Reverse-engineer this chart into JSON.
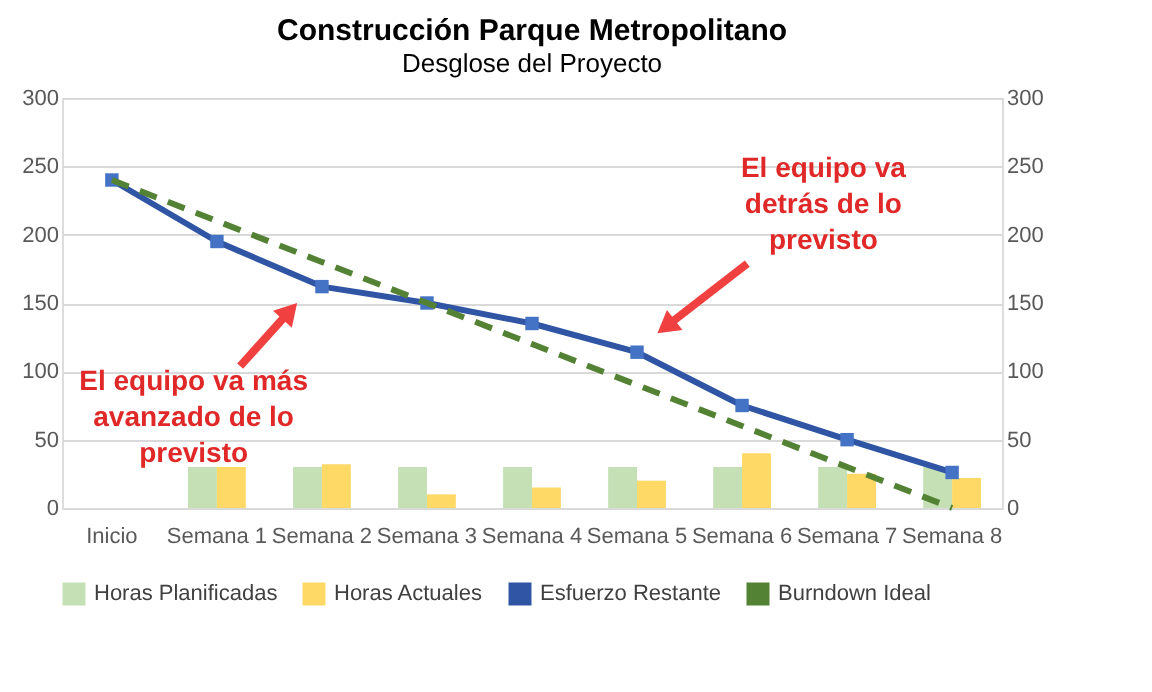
{
  "chart_data": {
    "type": "bar",
    "title": "Construcción Parque Metropolitano",
    "subtitle": "Desglose del Proyecto",
    "categories": [
      "Inicio",
      "Semana 1",
      "Semana 2",
      "Semana 3",
      "Semana 4",
      "Semana 5",
      "Semana 6",
      "Semana 7",
      "Semana 8"
    ],
    "series": [
      {
        "name": "Horas Planificadas",
        "color": "#c5e0b4",
        "values": [
          null,
          30,
          30,
          30,
          30,
          30,
          30,
          30,
          30
        ]
      },
      {
        "name": "Horas Actuales",
        "color": "#ffd966",
        "values": [
          null,
          30,
          32,
          10,
          15,
          20,
          40,
          25,
          22
        ]
      },
      {
        "name": "Esfuerzo Restante",
        "color": "#2f55a4",
        "type": "line",
        "marker": "square",
        "line_style": "solid",
        "values": [
          240,
          195,
          162,
          150,
          135,
          114,
          75,
          50,
          26
        ]
      },
      {
        "name": "Burndown Ideal",
        "color": "#548235",
        "type": "line",
        "marker": "none",
        "line_style": "dashed",
        "values": [
          240,
          210,
          180,
          150,
          120,
          90,
          60,
          30,
          0
        ]
      }
    ],
    "ylim": [
      0,
      300
    ],
    "yticks": [
      0,
      50,
      100,
      150,
      200,
      250,
      300
    ],
    "y2lim": [
      0,
      300
    ],
    "y2ticks": [
      0,
      50,
      100,
      150,
      200,
      250,
      300
    ],
    "grid": "y",
    "legend": "bottom",
    "annotations": [
      "El equipo va más avanzado de lo previsto",
      "El equipo va detrás de lo previsto"
    ]
  }
}
